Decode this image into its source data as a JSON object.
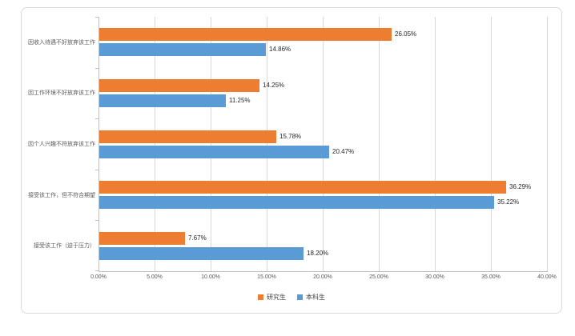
{
  "chart_data": {
    "type": "bar",
    "orientation": "horizontal",
    "categories": [
      "因收入待遇不好放弃该工作",
      "因工作环境不好放弃该工作",
      "因个人兴趣不符放弃该工作",
      "接受该工作，但不符合期望",
      "接受该工作（迫于压力）"
    ],
    "categories_note": "listed top-to-bottom as displayed",
    "series": [
      {
        "name": "研究生",
        "color": "#ED7D31",
        "values": [
          26.05,
          14.25,
          15.78,
          36.29,
          7.67
        ],
        "labels": [
          "26.05%",
          "14.25%",
          "15.78%",
          "36.29%",
          "7.67%"
        ]
      },
      {
        "name": "本科生",
        "color": "#5B9BD5",
        "values": [
          14.86,
          11.25,
          20.47,
          35.22,
          18.2
        ],
        "labels": [
          "14.86%",
          "11.25%",
          "20.47%",
          "35.22%",
          "18.20%"
        ]
      }
    ],
    "xlim": [
      0,
      40
    ],
    "x_tick_labels": [
      "0.00%",
      "5.00%",
      "10.00%",
      "15.00%",
      "20.00%",
      "25.00%",
      "30.00%",
      "35.00%",
      "40.00%"
    ],
    "grid": true,
    "legend_position": "bottom",
    "axis_color": "#bfbfbf",
    "gridline_color": "#d9d9d9",
    "label_color": "#595959"
  }
}
